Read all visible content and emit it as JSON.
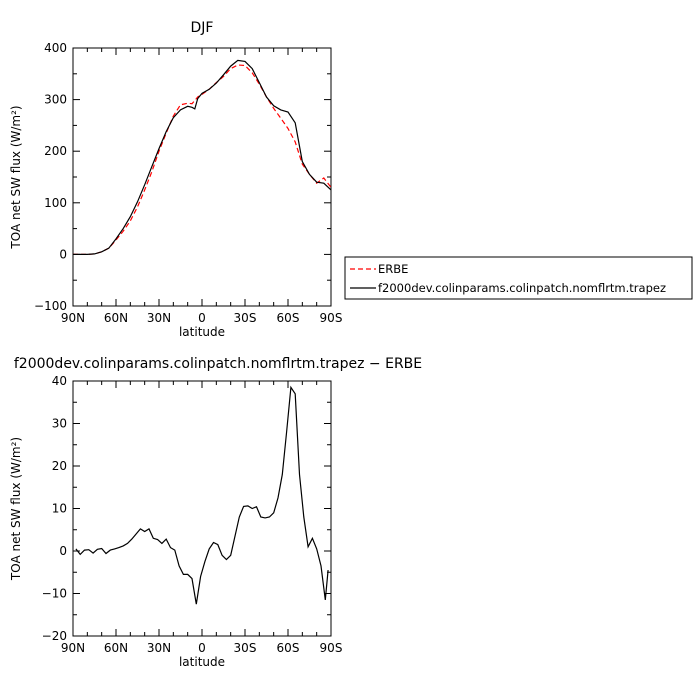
{
  "chart_data": [
    {
      "type": "line",
      "title": "DJF",
      "xlabel": "latitude",
      "ylabel": "TOA net SW flux (W/m²)",
      "xlim": [
        90,
        -90
      ],
      "ylim": [
        -100,
        400
      ],
      "xticks": [
        90,
        60,
        30,
        0,
        -30,
        -60,
        -90
      ],
      "xtick_labels": [
        "90N",
        "60N",
        "30N",
        "0",
        "30S",
        "60S",
        "90S"
      ],
      "yticks": [
        -100,
        0,
        100,
        200,
        300,
        400
      ],
      "ytick_labels": [
        "−100",
        "0",
        "100",
        "200",
        "300",
        "400"
      ],
      "legend_position": "right",
      "series": [
        {
          "name": "ERBE",
          "color": "#ff0000",
          "dash": "dashed",
          "x": [
            90,
            85,
            80,
            75,
            70,
            65,
            60,
            55,
            50,
            45,
            40,
            35,
            30,
            25,
            20,
            15,
            10,
            7,
            5,
            3,
            0,
            -5,
            -10,
            -15,
            -20,
            -25,
            -30,
            -35,
            -40,
            -45,
            -50,
            -55,
            -60,
            -65,
            -70,
            -75,
            -80,
            -85,
            -90
          ],
          "y": [
            0,
            0,
            0,
            1,
            5,
            12,
            28,
            45,
            65,
            92,
            125,
            160,
            200,
            235,
            268,
            290,
            293,
            292,
            298,
            305,
            310,
            320,
            333,
            345,
            360,
            367,
            366,
            352,
            330,
            305,
            283,
            264,
            244,
            218,
            175,
            155,
            138,
            148,
            130
          ]
        },
        {
          "name": "f2000dev.colinparams.colinpatch.nomflrtm.trapez",
          "color": "#000000",
          "dash": "solid",
          "x": [
            90,
            85,
            80,
            75,
            70,
            65,
            60,
            55,
            50,
            45,
            40,
            35,
            30,
            25,
            20,
            15,
            10,
            7,
            5,
            3,
            0,
            -5,
            -10,
            -15,
            -20,
            -25,
            -30,
            -35,
            -40,
            -45,
            -50,
            -55,
            -60,
            -65,
            -70,
            -75,
            -80,
            -85,
            -90
          ],
          "y": [
            0,
            0,
            0,
            1,
            5,
            12,
            30,
            50,
            73,
            102,
            135,
            170,
            205,
            238,
            265,
            280,
            287,
            285,
            282,
            302,
            312,
            320,
            332,
            348,
            365,
            376,
            374,
            360,
            333,
            305,
            288,
            280,
            276,
            255,
            180,
            155,
            140,
            138,
            125
          ]
        }
      ]
    },
    {
      "type": "line",
      "title": "f2000dev.colinparams.colinpatch.nomflrtm.trapez − ERBE",
      "xlabel": "latitude",
      "ylabel": "TOA net SW flux (W/m²)",
      "xlim": [
        90,
        -90
      ],
      "ylim": [
        -20,
        40
      ],
      "xticks": [
        90,
        60,
        30,
        0,
        -30,
        -60,
        -90
      ],
      "xtick_labels": [
        "90N",
        "60N",
        "30N",
        "0",
        "30S",
        "60S",
        "90S"
      ],
      "yticks": [
        -20,
        -10,
        0,
        10,
        20,
        30,
        40
      ],
      "ytick_labels": [
        "−20",
        "−10",
        "0",
        "10",
        "20",
        "30",
        "40"
      ],
      "series": [
        {
          "color": "#000000",
          "dash": "solid",
          "x": [
            88,
            85,
            82,
            79,
            76,
            73,
            70,
            67,
            64,
            61,
            58,
            55,
            52,
            49,
            46,
            43,
            40,
            37,
            34,
            31,
            28,
            25,
            22,
            19,
            16,
            13,
            10,
            7,
            4,
            1,
            -2,
            -5,
            -8,
            -11,
            -14,
            -17,
            -20,
            -23,
            -26,
            -29,
            -32,
            -35,
            -38,
            -41,
            -44,
            -47,
            -50,
            -53,
            -56,
            -59,
            -62,
            -65,
            -68,
            -71,
            -74,
            -77,
            -80,
            -83,
            -86,
            -88
          ],
          "y": [
            0.5,
            -0.8,
            0.2,
            0.3,
            -0.5,
            0.4,
            0.6,
            -0.6,
            0.2,
            0.5,
            0.8,
            1.2,
            1.8,
            2.8,
            4.0,
            5.2,
            4.6,
            5.2,
            3.0,
            2.7,
            1.8,
            2.8,
            0.8,
            0.2,
            -3.5,
            -5.5,
            -5.5,
            -6.5,
            -12.5,
            -6.0,
            -2.5,
            0.5,
            2.0,
            1.5,
            -1.0,
            -2.0,
            -1.0,
            3.5,
            8.0,
            10.5,
            10.6,
            10.0,
            10.4,
            8.0,
            7.8,
            8.0,
            9.0,
            12.5,
            18.0,
            28.0,
            38.5,
            37.0,
            18.0,
            8.0,
            1.0,
            3.0,
            0.5,
            -3.5,
            -11.5,
            -4.5
          ]
        }
      ]
    }
  ]
}
